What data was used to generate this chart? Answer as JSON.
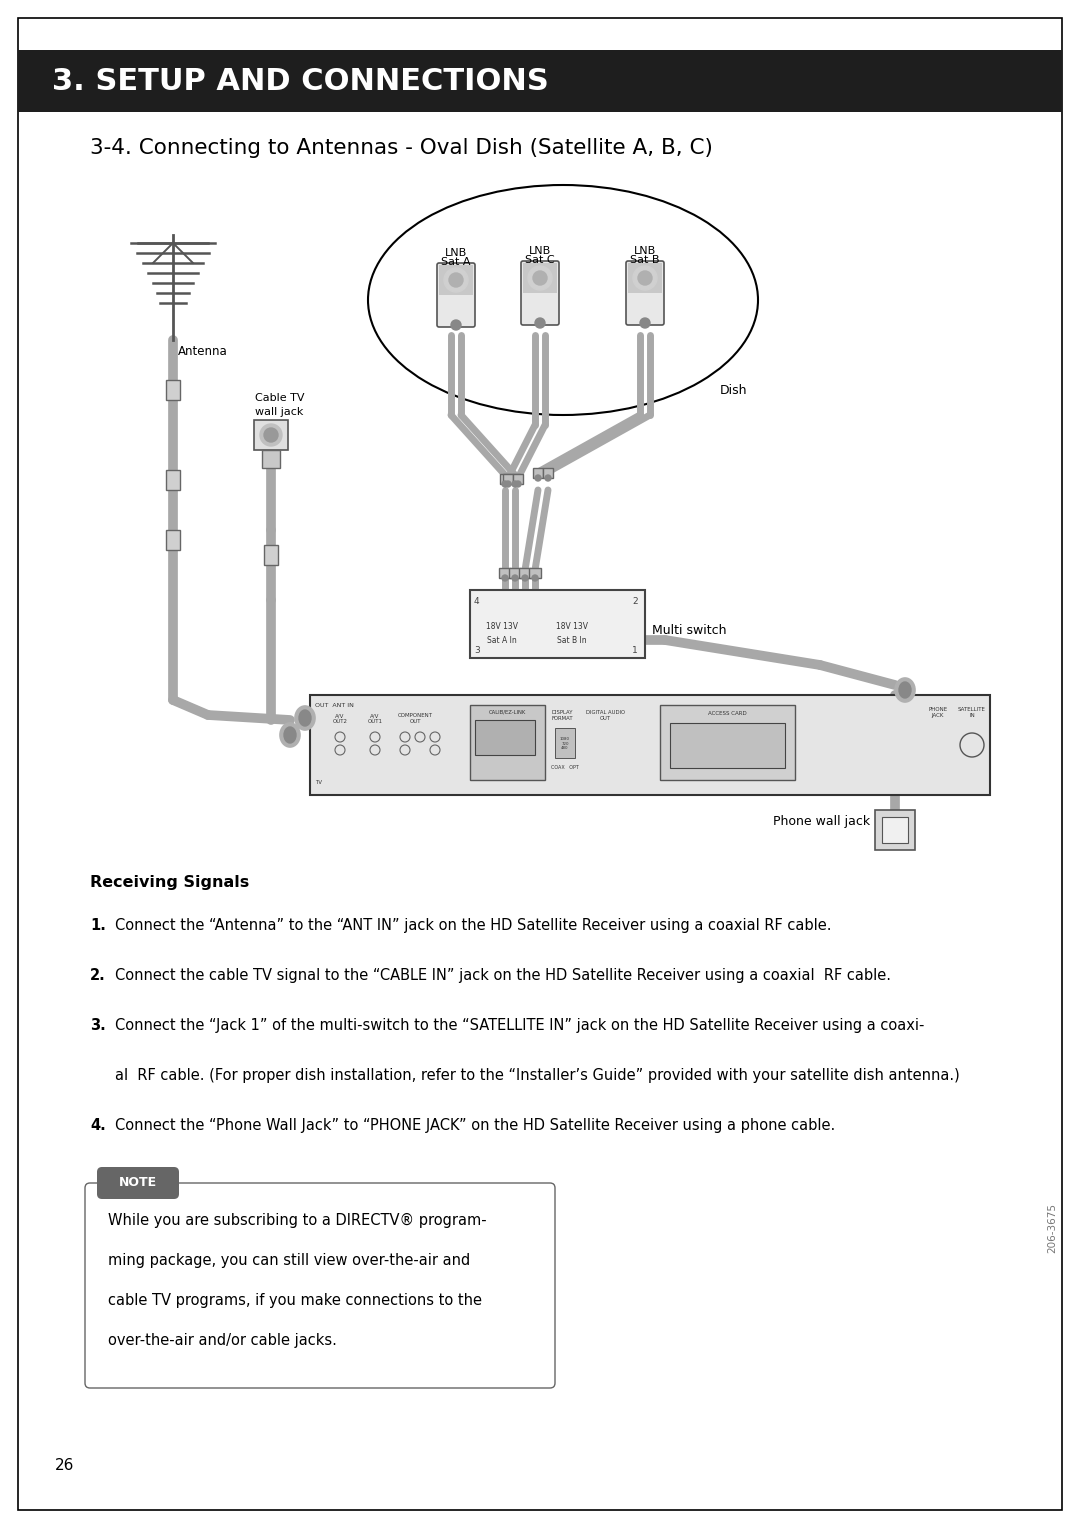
{
  "page_bg": "#ffffff",
  "header_bg": "#1e1e1e",
  "header_text": "3. SETUP AND CONNECTIONS",
  "header_text_color": "#ffffff",
  "section_title": "3-4. Connecting to Antennas - Oval Dish (Satellite A, B, C)",
  "receiving_signals_title": "Receiving Signals",
  "inst1_num": "1.",
  "inst1_text": "Connect the “Antenna” to the “ANT IN” jack on the HD Satellite Receiver using a coaxial RF cable.",
  "inst2_num": "2.",
  "inst2_text": "Connect the cable TV signal to the “CABLE IN” jack on the HD Satellite Receiver using a coaxial  RF cable.",
  "inst3_num": "3.",
  "inst3_text": "Connect the “Jack 1” of the multi-switch to the “SATELLITE IN” jack on the HD Satellite Receiver using a coaxi-",
  "inst3b_text": "al  RF cable. (For proper dish installation, refer to the “Installer’s Guide” provided with your satellite dish antenna.)",
  "inst4_num": "4.",
  "inst4_text": "Connect the “Phone Wall Jack” to “PHONE JACK” on the HD Satellite Receiver using a phone cable.",
  "note_title": "NOTE",
  "note_line1": "While you are subscribing to a DIRECTV® program-",
  "note_line2": "ming package, you can still view over-the-air and",
  "note_line3": "cable TV programs, if you make connections to the",
  "note_line4": "over-the-air and/or cable jacks.",
  "page_number": "26",
  "doc_number": "206-3675",
  "cable_color": "#a8a8a8",
  "diagram_labels": {
    "antenna": "Antenna",
    "cable_tv_wall_jack_l1": "Cable TV",
    "cable_tv_wall_jack_l2": "wall jack",
    "dish": "Dish",
    "multi_switch": "Multi switch",
    "lnb_sat_a_l1": "LNB",
    "lnb_sat_a_l2": "Sat A",
    "lnb_sat_b_l1": "LNB",
    "lnb_sat_b_l2": "Sat B",
    "lnb_sat_c_l1": "LNB",
    "lnb_sat_c_l2": "Sat C",
    "phone_wall_jack": "Phone wall jack",
    "sat_a_in": "Sat A In",
    "sat_b_in": "Sat B In",
    "v18_13v": "18V 13V"
  }
}
